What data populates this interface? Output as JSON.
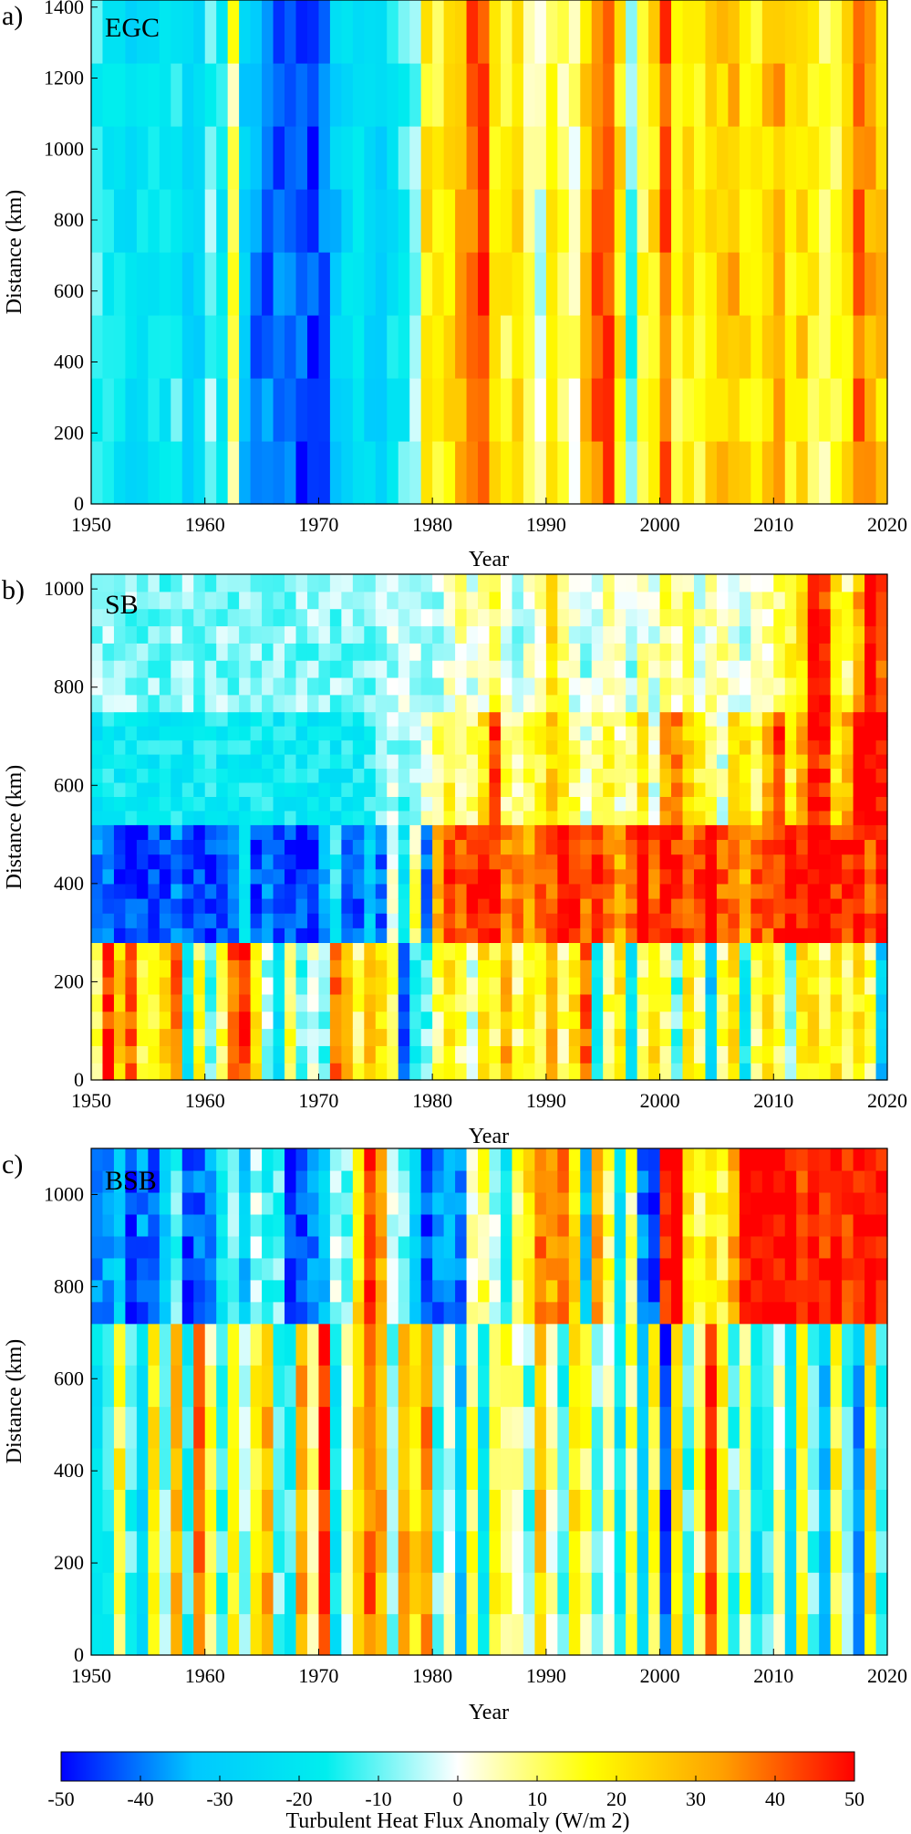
{
  "chart_data": [
    {
      "type": "heatmap",
      "panel_label": "a)",
      "region": "EGC",
      "xlabel": "Year",
      "ylabel": "Distance (km)",
      "xlim": [
        1950,
        2020
      ],
      "ylim": [
        0,
        1420
      ],
      "xticks": [
        1950,
        1960,
        1970,
        1980,
        1990,
        2000,
        2010,
        2020
      ],
      "yticks": [
        0,
        200,
        400,
        600,
        800,
        1000,
        1200,
        1400
      ],
      "row_bands": [
        [
          0,
          1420
        ]
      ],
      "years": [
        1950,
        1951,
        1952,
        1953,
        1954,
        1955,
        1956,
        1957,
        1958,
        1959,
        1960,
        1961,
        1962,
        1963,
        1964,
        1965,
        1966,
        1967,
        1968,
        1969,
        1970,
        1971,
        1972,
        1973,
        1974,
        1975,
        1976,
        1977,
        1978,
        1979,
        1980,
        1981,
        1982,
        1983,
        1984,
        1985,
        1986,
        1987,
        1988,
        1989,
        1990,
        1991,
        1992,
        1993,
        1994,
        1995,
        1996,
        1997,
        1998,
        1999,
        2000,
        2001,
        2002,
        2003,
        2004,
        2005,
        2006,
        2007,
        2008,
        2009,
        2010,
        2011,
        2012,
        2013,
        2014,
        2015,
        2016,
        2017,
        2018,
        2019
      ],
      "band_means": [
        [
          -15,
          -18,
          -20,
          -25,
          -22,
          -20,
          -18,
          -15,
          -28,
          -25,
          -10,
          -20,
          10,
          -30,
          -38,
          -40,
          -42,
          -40,
          -45,
          -45,
          -40,
          -30,
          -25,
          -20,
          -25,
          -30,
          -20,
          -15,
          -10,
          20,
          15,
          20,
          30,
          40,
          45,
          20,
          15,
          20,
          10,
          0,
          15,
          10,
          5,
          25,
          40,
          45,
          20,
          -10,
          15,
          20,
          40,
          15,
          20,
          15,
          20,
          25,
          30,
          20,
          15,
          25,
          30,
          20,
          25,
          15,
          10,
          15,
          20,
          40,
          30,
          25
        ]
      ]
    },
    {
      "type": "heatmap",
      "panel_label": "b)",
      "region": "SB",
      "xlabel": "Year",
      "ylabel": "Distance (km)",
      "xlim": [
        1950,
        2020
      ],
      "ylim": [
        0,
        1030
      ],
      "xticks": [
        1950,
        1960,
        1970,
        1980,
        1990,
        2000,
        2010,
        2020
      ],
      "yticks": [
        0,
        200,
        400,
        600,
        800,
        1000
      ],
      "row_bands": [
        [
          0,
          280
        ],
        [
          280,
          520
        ],
        [
          520,
          750
        ],
        [
          750,
          1030
        ]
      ],
      "years": [
        1950,
        1951,
        1952,
        1953,
        1954,
        1955,
        1956,
        1957,
        1958,
        1959,
        1960,
        1961,
        1962,
        1963,
        1964,
        1965,
        1966,
        1967,
        1968,
        1969,
        1970,
        1971,
        1972,
        1973,
        1974,
        1975,
        1976,
        1977,
        1978,
        1979,
        1980,
        1981,
        1982,
        1983,
        1984,
        1985,
        1986,
        1987,
        1988,
        1989,
        1990,
        1991,
        1992,
        1993,
        1994,
        1995,
        1996,
        1997,
        1998,
        1999,
        2000,
        2001,
        2002,
        2003,
        2004,
        2005,
        2006,
        2007,
        2008,
        2009,
        2010,
        2011,
        2012,
        2013,
        2014,
        2015,
        2016,
        2017,
        2018,
        2019
      ],
      "band_means": [
        [
          10,
          45,
          25,
          40,
          10,
          15,
          25,
          40,
          -20,
          15,
          -10,
          10,
          40,
          45,
          20,
          -5,
          -25,
          10,
          -10,
          0,
          -10,
          40,
          30,
          10,
          30,
          20,
          10,
          -40,
          -15,
          -10,
          10,
          20,
          10,
          0,
          20,
          10,
          30,
          10,
          20,
          10,
          30,
          10,
          20,
          40,
          -20,
          10,
          20,
          -20,
          10,
          20,
          10,
          -10,
          20,
          10,
          -30,
          10,
          20,
          -20,
          10,
          20,
          10,
          -10,
          20,
          20,
          10,
          20,
          10,
          20,
          10,
          -30
        ],
        [
          -40,
          -42,
          -45,
          -45,
          -45,
          -45,
          -44,
          -38,
          -45,
          -45,
          -45,
          -45,
          -40,
          -20,
          -45,
          -35,
          -45,
          -45,
          -45,
          -45,
          -35,
          -15,
          -40,
          -45,
          -30,
          -40,
          0,
          -20,
          10,
          -40,
          30,
          45,
          40,
          45,
          50,
          45,
          35,
          40,
          30,
          40,
          40,
          50,
          45,
          40,
          45,
          40,
          30,
          40,
          50,
          40,
          50,
          45,
          40,
          45,
          50,
          40,
          40,
          30,
          40,
          40,
          45,
          50,
          45,
          50,
          50,
          45,
          45,
          50,
          40,
          45
        ],
        [
          -20,
          -18,
          -18,
          -18,
          -18,
          -18,
          -18,
          -18,
          -18,
          -18,
          -18,
          -18,
          -18,
          -18,
          -18,
          -18,
          -18,
          -18,
          -18,
          -18,
          -18,
          -18,
          -18,
          -18,
          -15,
          -10,
          -5,
          -10,
          -5,
          0,
          10,
          15,
          5,
          10,
          20,
          45,
          10,
          5,
          10,
          15,
          25,
          20,
          10,
          0,
          10,
          15,
          5,
          10,
          20,
          0,
          30,
          35,
          25,
          15,
          10,
          0,
          20,
          20,
          10,
          30,
          45,
          15,
          30,
          50,
          45,
          20,
          30,
          50,
          50,
          50
        ],
        [
          -8,
          -8,
          -8,
          -8,
          -8,
          -8,
          -8,
          -8,
          -8,
          -8,
          -8,
          -8,
          -8,
          -8,
          -8,
          -8,
          -8,
          -8,
          -8,
          -8,
          -8,
          -8,
          -8,
          -8,
          -8,
          -5,
          -5,
          -5,
          -5,
          -5,
          -5,
          0,
          5,
          0,
          5,
          10,
          0,
          -5,
          0,
          5,
          20,
          10,
          0,
          -5,
          0,
          5,
          0,
          -5,
          5,
          0,
          10,
          5,
          10,
          0,
          5,
          5,
          0,
          -5,
          0,
          5,
          10,
          15,
          20,
          50,
          45,
          20,
          10,
          30,
          50,
          40
        ]
      ]
    },
    {
      "type": "heatmap",
      "panel_label": "c)",
      "region": "BSB",
      "xlabel": "Year",
      "ylabel": "Distance (km)",
      "xlim": [
        1950,
        2020
      ],
      "ylim": [
        0,
        1100
      ],
      "xticks": [
        1950,
        1960,
        1970,
        1980,
        1990,
        2000,
        2010,
        2020
      ],
      "yticks": [
        0,
        200,
        400,
        600,
        800,
        1000
      ],
      "row_bands": [
        [
          0,
          720
        ],
        [
          720,
          1100
        ]
      ],
      "years": [
        1950,
        1951,
        1952,
        1953,
        1954,
        1955,
        1956,
        1957,
        1958,
        1959,
        1960,
        1961,
        1962,
        1963,
        1964,
        1965,
        1966,
        1967,
        1968,
        1969,
        1970,
        1971,
        1972,
        1973,
        1974,
        1975,
        1976,
        1977,
        1978,
        1979,
        1980,
        1981,
        1982,
        1983,
        1984,
        1985,
        1986,
        1987,
        1988,
        1989,
        1990,
        1991,
        1992,
        1993,
        1994,
        1995,
        1996,
        1997,
        1998,
        1999,
        2000,
        2001,
        2002,
        2003,
        2004,
        2005,
        2006,
        2007,
        2008,
        2009,
        2010,
        2011,
        2012,
        2013,
        2014,
        2015,
        2016,
        2017,
        2018,
        2019
      ],
      "band_means": [
        [
          -20,
          -15,
          15,
          -10,
          -25,
          20,
          -10,
          30,
          -15,
          40,
          10,
          -15,
          20,
          -5,
          15,
          30,
          -10,
          -15,
          30,
          10,
          45,
          -20,
          5,
          25,
          40,
          30,
          -10,
          30,
          20,
          35,
          -10,
          0,
          -30,
          10,
          -20,
          15,
          10,
          5,
          -10,
          25,
          5,
          -15,
          20,
          10,
          -10,
          5,
          -20,
          10,
          -30,
          15,
          -45,
          20,
          -10,
          10,
          45,
          15,
          -10,
          10,
          -20,
          -10,
          5,
          -25,
          15,
          -10,
          -30,
          15,
          -10,
          -35,
          20,
          -15
        ],
        [
          -40,
          -35,
          -30,
          -45,
          -40,
          -45,
          -30,
          -10,
          -45,
          -40,
          -40,
          -20,
          -10,
          -30,
          -5,
          -15,
          -10,
          -45,
          -45,
          -40,
          -30,
          -5,
          -10,
          20,
          45,
          30,
          0,
          -10,
          -30,
          -45,
          -40,
          -35,
          -40,
          5,
          10,
          -5,
          -20,
          10,
          20,
          40,
          30,
          40,
          20,
          -30,
          30,
          10,
          -20,
          10,
          -40,
          -45,
          45,
          50,
          20,
          10,
          20,
          15,
          30,
          50,
          50,
          50,
          50,
          50,
          45,
          50,
          45,
          50,
          45,
          50,
          50,
          50
        ]
      ]
    }
  ],
  "colorbar": {
    "label": "Turbulent Heat Flux Anomaly (W/m 2)",
    "min": -50,
    "max": 50,
    "ticks": [
      "-50",
      "-40",
      "-30",
      "-20",
      "-10",
      "0",
      "10",
      "20",
      "30",
      "40",
      "50"
    ],
    "colors": [
      "#0000ff",
      "#00c8ff",
      "#00eeee",
      "#ffffff",
      "#ffff00",
      "#ffa000",
      "#ff0000"
    ]
  }
}
